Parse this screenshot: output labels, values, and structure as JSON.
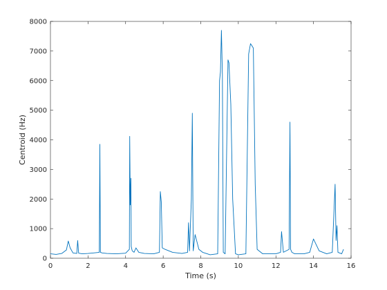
{
  "chart_data": {
    "type": "line",
    "title": "",
    "xlabel": "Time (s)",
    "ylabel": "Centroid (Hz)",
    "xlim": [
      0,
      16
    ],
    "ylim": [
      0,
      8000
    ],
    "xticks": [
      0,
      2,
      4,
      6,
      8,
      10,
      12,
      14,
      16
    ],
    "yticks": [
      0,
      1000,
      2000,
      3000,
      4000,
      5000,
      6000,
      7000,
      8000
    ],
    "grid": false,
    "line_color": "#0072BD",
    "series": [
      {
        "x": [
          0.0,
          0.3,
          0.6,
          0.85,
          0.95,
          1.05,
          1.2,
          1.4,
          1.45,
          1.5,
          1.7,
          2.0,
          2.3,
          2.6,
          2.63,
          2.66,
          2.75,
          3.0,
          3.5,
          4.0,
          4.2,
          4.22,
          4.25,
          4.28,
          4.3,
          4.35,
          4.45,
          4.55,
          4.7,
          5.0,
          5.5,
          5.8,
          5.85,
          5.9,
          5.95,
          6.1,
          6.5,
          7.0,
          7.3,
          7.35,
          7.4,
          7.5,
          7.55,
          7.6,
          7.7,
          7.9,
          8.1,
          8.5,
          8.9,
          9.0,
          9.05,
          9.1,
          9.15,
          9.2,
          9.3,
          9.45,
          9.5,
          9.6,
          9.7,
          9.85,
          10.0,
          10.4,
          10.55,
          10.65,
          10.7,
          10.8,
          10.9,
          11.0,
          11.3,
          12.0,
          12.25,
          12.3,
          12.4,
          12.7,
          12.75,
          12.78,
          12.85,
          13.0,
          13.5,
          13.8,
          14.0,
          14.3,
          14.7,
          15.0,
          15.15,
          15.2,
          15.25,
          15.3,
          15.5,
          15.6
        ],
        "y": [
          150,
          130,
          160,
          280,
          580,
          350,
          180,
          160,
          600,
          170,
          150,
          160,
          180,
          200,
          3850,
          200,
          180,
          160,
          150,
          170,
          300,
          4120,
          1800,
          2700,
          400,
          250,
          200,
          350,
          200,
          160,
          150,
          200,
          2250,
          1900,
          350,
          300,
          200,
          160,
          200,
          1200,
          250,
          2000,
          4900,
          250,
          800,
          300,
          200,
          120,
          150,
          6000,
          6300,
          7700,
          6200,
          200,
          150,
          6700,
          6600,
          5200,
          2000,
          150,
          120,
          150,
          6900,
          7250,
          7200,
          7100,
          2500,
          300,
          150,
          150,
          200,
          900,
          200,
          300,
          4600,
          300,
          200,
          150,
          150,
          200,
          650,
          250,
          150,
          200,
          2500,
          600,
          1100,
          200,
          150,
          300
        ]
      }
    ]
  }
}
